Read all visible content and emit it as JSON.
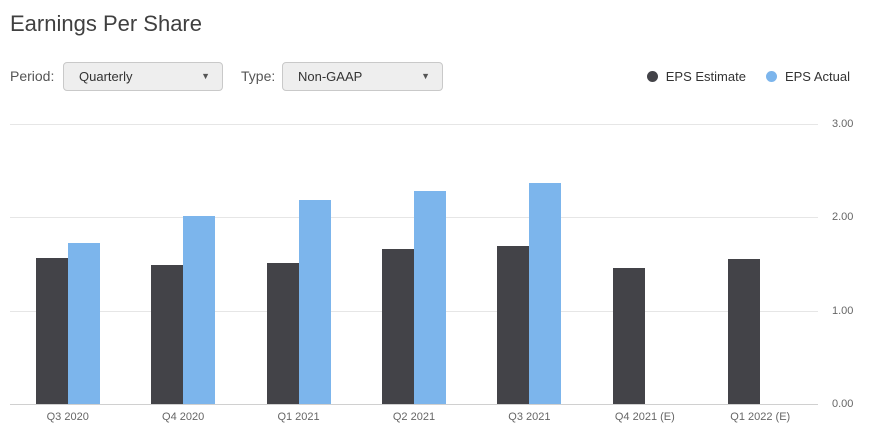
{
  "title": "Earnings Per Share",
  "controls": {
    "period_label": "Period:",
    "period_value": "Quarterly",
    "type_label": "Type:",
    "type_value": "Non-GAAP",
    "caret": "▼"
  },
  "legend": [
    {
      "label": "EPS Estimate",
      "color": "#434348"
    },
    {
      "label": "EPS Actual",
      "color": "#7cb5ec"
    }
  ],
  "chart_data": {
    "type": "bar",
    "title": "Earnings Per Share",
    "categories": [
      "Q3 2020",
      "Q4 2020",
      "Q1 2021",
      "Q2 2021",
      "Q3 2021",
      "Q4 2021 (E)",
      "Q1 2022 (E)"
    ],
    "series": [
      {
        "name": "EPS Estimate",
        "color": "#434348",
        "values": [
          1.56,
          1.49,
          1.51,
          1.66,
          1.69,
          1.46,
          1.55
        ]
      },
      {
        "name": "EPS Actual",
        "color": "#7cb5ec",
        "values": [
          1.73,
          2.01,
          2.19,
          2.28,
          2.37,
          null,
          null
        ]
      }
    ],
    "xlabel": "",
    "ylabel": "",
    "ylim": [
      0,
      3
    ],
    "yticks": [
      "0.00",
      "1.00",
      "2.00",
      "3.00"
    ],
    "grid": true,
    "legend_position": "top-right"
  }
}
